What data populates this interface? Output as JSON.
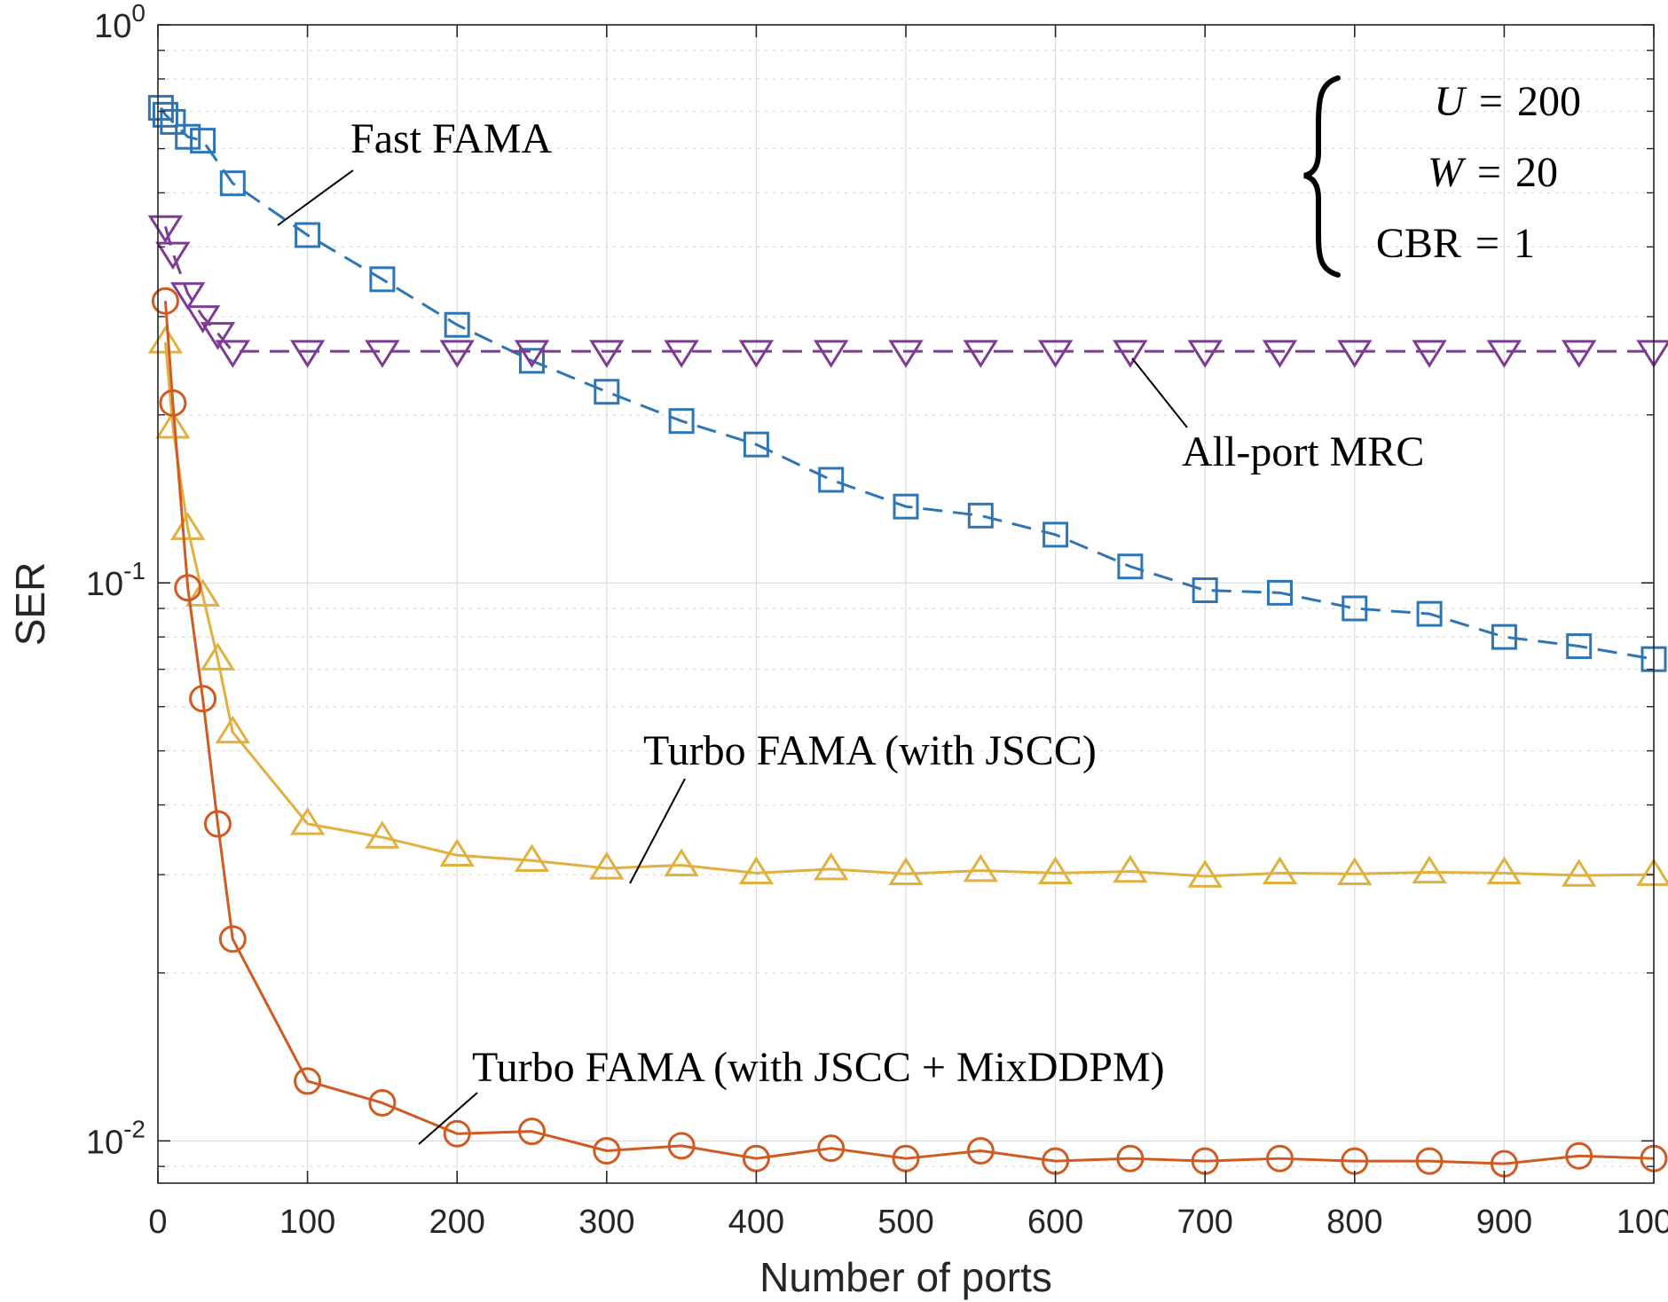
{
  "chart_data": {
    "type": "line",
    "title": "",
    "xlabel": "Number of ports",
    "ylabel": "SER",
    "xlim": [
      0,
      1000
    ],
    "ylim": [
      0.0084,
      1
    ],
    "yscale": "log",
    "grid": true,
    "x_ticks": [
      0,
      100,
      200,
      300,
      400,
      500,
      600,
      700,
      800,
      900,
      1000
    ],
    "y_ticks": [
      {
        "value": 1,
        "base": "10",
        "exp": "0"
      },
      {
        "value": 0.1,
        "base": "10",
        "exp": "-1"
      },
      {
        "value": 0.01,
        "base": "10",
        "exp": "-2"
      }
    ],
    "series": [
      {
        "name": "Fast FAMA",
        "color": "#2e75b6",
        "dash": "dashed",
        "marker": "square",
        "x": [
          2,
          5,
          10,
          20,
          30,
          50,
          100,
          150,
          200,
          250,
          300,
          350,
          400,
          450,
          500,
          550,
          600,
          650,
          700,
          750,
          800,
          850,
          900,
          950,
          1000
        ],
        "values": [
          0.71,
          0.69,
          0.67,
          0.63,
          0.62,
          0.52,
          0.42,
          0.35,
          0.29,
          0.25,
          0.22,
          0.195,
          0.177,
          0.153,
          0.137,
          0.132,
          0.122,
          0.107,
          0.097,
          0.096,
          0.09,
          0.088,
          0.08,
          0.077,
          0.073
        ]
      },
      {
        "name": "All-port MRC",
        "color": "#7e3b94",
        "dash": "dashed",
        "marker": "triangle-down",
        "x": [
          5,
          10,
          20,
          30,
          40,
          50,
          100,
          150,
          200,
          250,
          300,
          350,
          400,
          450,
          500,
          550,
          600,
          650,
          700,
          750,
          800,
          850,
          900,
          950,
          1000
        ],
        "values": [
          0.435,
          0.39,
          0.33,
          0.3,
          0.28,
          0.26,
          0.26,
          0.26,
          0.26,
          0.26,
          0.26,
          0.26,
          0.26,
          0.26,
          0.26,
          0.26,
          0.26,
          0.26,
          0.26,
          0.26,
          0.26,
          0.26,
          0.26,
          0.26,
          0.26
        ]
      },
      {
        "name": "Turbo FAMA (with JSCC)",
        "color": "#e0b040",
        "dash": "solid",
        "marker": "triangle-up",
        "x": [
          5,
          10,
          20,
          30,
          40,
          50,
          100,
          150,
          200,
          250,
          300,
          350,
          400,
          450,
          500,
          550,
          600,
          650,
          700,
          750,
          800,
          850,
          900,
          950,
          1000
        ],
        "values": [
          0.27,
          0.19,
          0.125,
          0.095,
          0.073,
          0.054,
          0.037,
          0.035,
          0.0325,
          0.0318,
          0.0308,
          0.0312,
          0.0302,
          0.0307,
          0.0301,
          0.0305,
          0.0302,
          0.0304,
          0.0298,
          0.0302,
          0.0301,
          0.0303,
          0.0302,
          0.0299,
          0.03
        ]
      },
      {
        "name": "Turbo FAMA (with JSCC + MixDDPM)",
        "color": "#d05b22",
        "dash": "solid",
        "marker": "circle",
        "x": [
          5,
          10,
          20,
          30,
          40,
          50,
          100,
          150,
          200,
          250,
          300,
          350,
          400,
          450,
          500,
          550,
          600,
          650,
          700,
          750,
          800,
          850,
          900,
          950,
          1000
        ],
        "values": [
          0.32,
          0.21,
          0.098,
          0.062,
          0.037,
          0.023,
          0.0128,
          0.0117,
          0.0103,
          0.0104,
          0.0096,
          0.0098,
          0.0093,
          0.0097,
          0.0093,
          0.0096,
          0.0092,
          0.0093,
          0.0092,
          0.0093,
          0.0092,
          0.0092,
          0.0091,
          0.0094,
          0.0093
        ]
      }
    ],
    "annotations": [
      {
        "text": "Fast FAMA",
        "target_series": 0
      },
      {
        "text": "All-port MRC",
        "target_series": 1
      },
      {
        "text": "Turbo FAMA (with JSCC)",
        "target_series": 2
      },
      {
        "text": "Turbo FAMA (with JSCC + MixDDPM)",
        "target_series": 3
      }
    ],
    "params_box": {
      "lines": [
        {
          "var": "U",
          "op": "=",
          "val": "200"
        },
        {
          "var": "W",
          "op": "=",
          "val": "20"
        },
        {
          "var": "CBR",
          "op": "=",
          "val": "1"
        }
      ]
    }
  }
}
